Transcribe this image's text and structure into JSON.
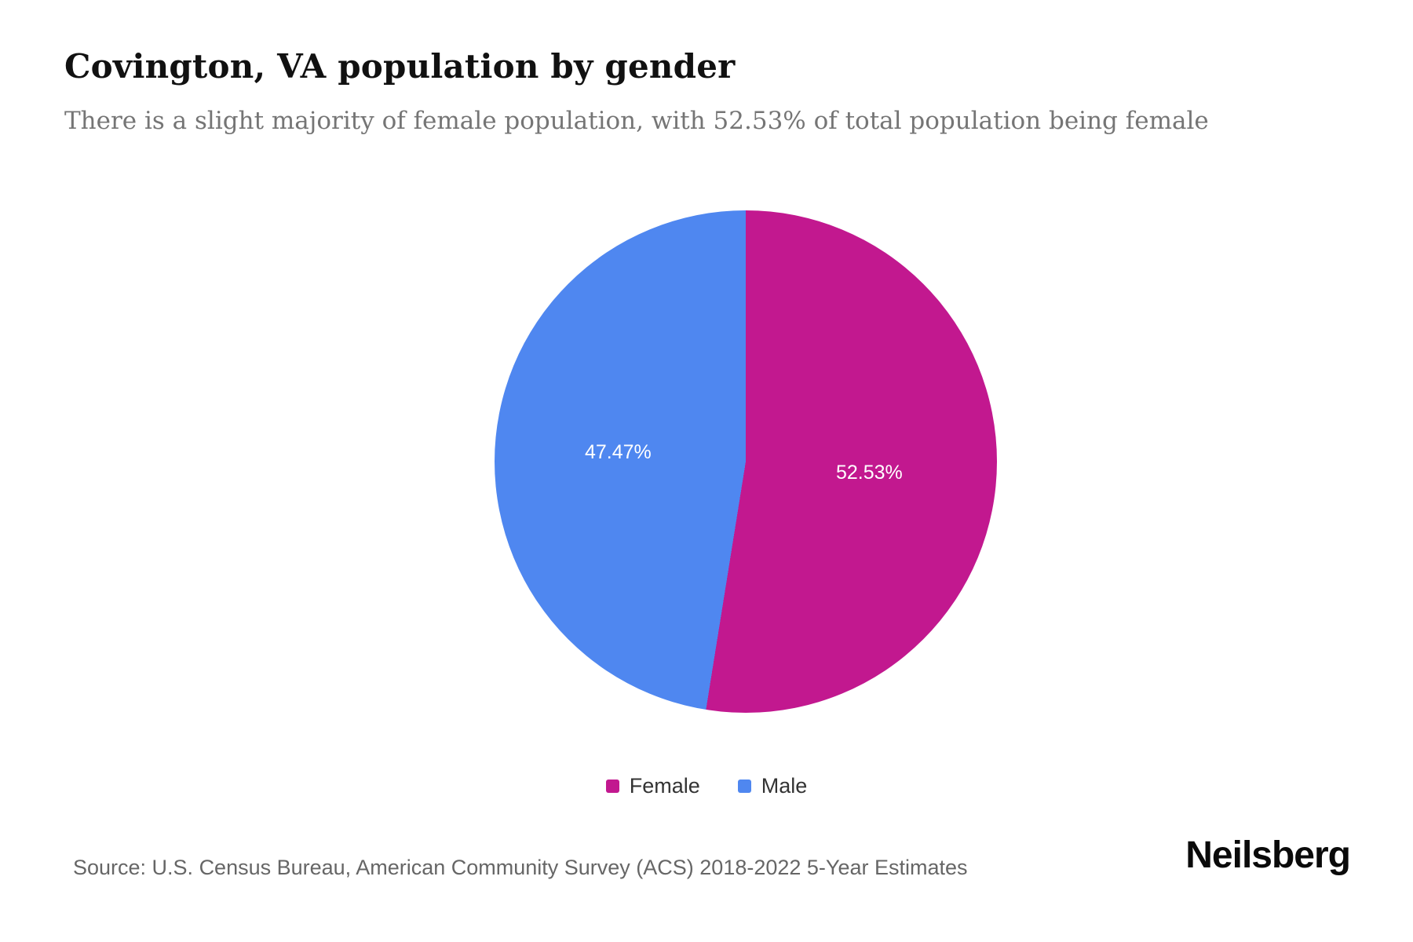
{
  "header": {
    "title": "Covington, VA population by gender",
    "subtitle": "There is a slight majority of female population, with 52.53% of total population being female"
  },
  "chart_data": {
    "type": "pie",
    "title": "Covington, VA population by gender",
    "start_angle_deg": 0,
    "direction": "clockwise",
    "legend_position": "bottom",
    "value_label_color": "#ffffff",
    "slices": [
      {
        "label": "Female",
        "value": 52.53,
        "pct_label": "52.53%",
        "color": "#c2188f"
      },
      {
        "label": "Male",
        "value": 47.47,
        "pct_label": "47.47%",
        "color": "#4f87f0"
      }
    ]
  },
  "footer": {
    "source": "Source: U.S. Census Bureau, American Community Survey (ACS) 2018-2022 5-Year Estimates",
    "brand": "Neilsberg"
  }
}
